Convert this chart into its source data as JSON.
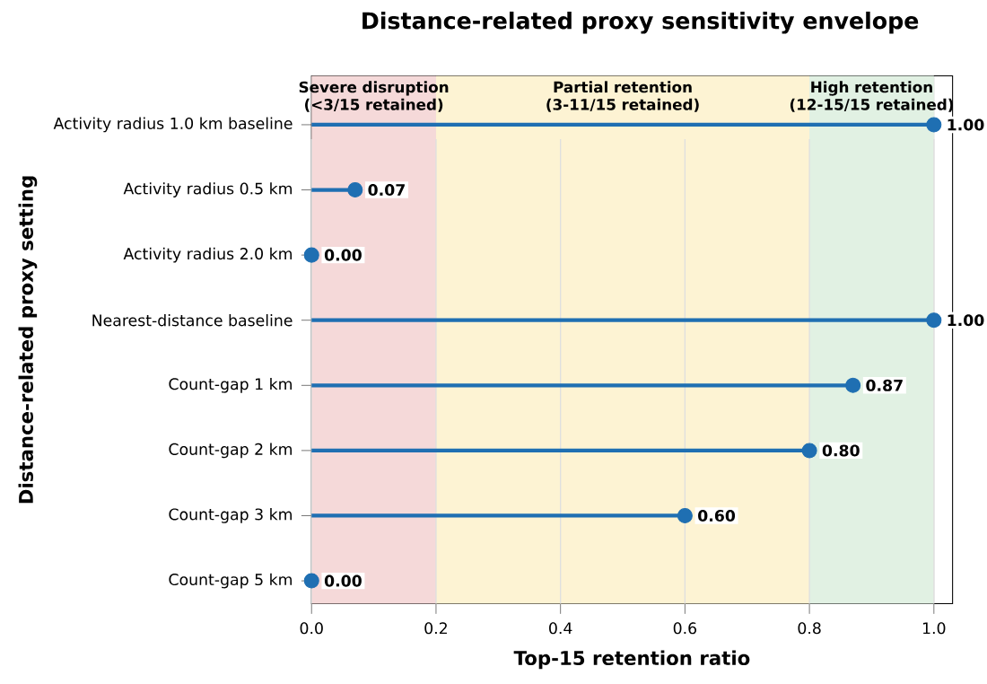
{
  "chart_data": {
    "type": "lollipop",
    "orientation": "horizontal",
    "title": "Distance-related proxy sensitivity envelope",
    "xlabel": "Top-15 retention ratio",
    "ylabel": "Distance-related proxy setting",
    "categories": [
      "Activity radius 1.0 km baseline",
      "Activity radius 0.5 km",
      "Activity radius 2.0 km",
      "Nearest-distance baseline",
      "Count-gap 1 km",
      "Count-gap 2 km",
      "Count-gap 3 km",
      "Count-gap 5 km"
    ],
    "values": [
      1.0,
      0.07,
      0.0,
      1.0,
      0.87,
      0.8,
      0.6,
      0.0
    ],
    "value_labels": [
      "1.00",
      "0.07",
      "0.00",
      "1.00",
      "0.87",
      "0.80",
      "0.60",
      "0.00"
    ],
    "color": "#1f6fb2",
    "marker": "circle",
    "grid": "x",
    "xlim": [
      0,
      1.03
    ],
    "xticks": [
      {
        "value": 0,
        "label": "0.0"
      },
      {
        "value": 0.2,
        "label": "0.2"
      },
      {
        "value": 0.4,
        "label": "0.4"
      },
      {
        "value": 0.6,
        "label": "0.6"
      },
      {
        "value": 0.8,
        "label": "0.8"
      },
      {
        "value": 1,
        "label": "1.0"
      }
    ],
    "bands": [
      {
        "axis": "x",
        "from": 0,
        "to": 0.2,
        "label": "Severe disruption (<3/15 retained)",
        "color": "#f5d9d9"
      },
      {
        "axis": "x",
        "from": 0.2,
        "to": 0.8,
        "label": "Partial retention (3-11/15 retained)",
        "color": "#fdf3d3"
      },
      {
        "axis": "x",
        "from": 0.8,
        "to": 1.0,
        "label": "High retention (12-15/15 retained)",
        "color": "#e1f1e3"
      }
    ]
  }
}
